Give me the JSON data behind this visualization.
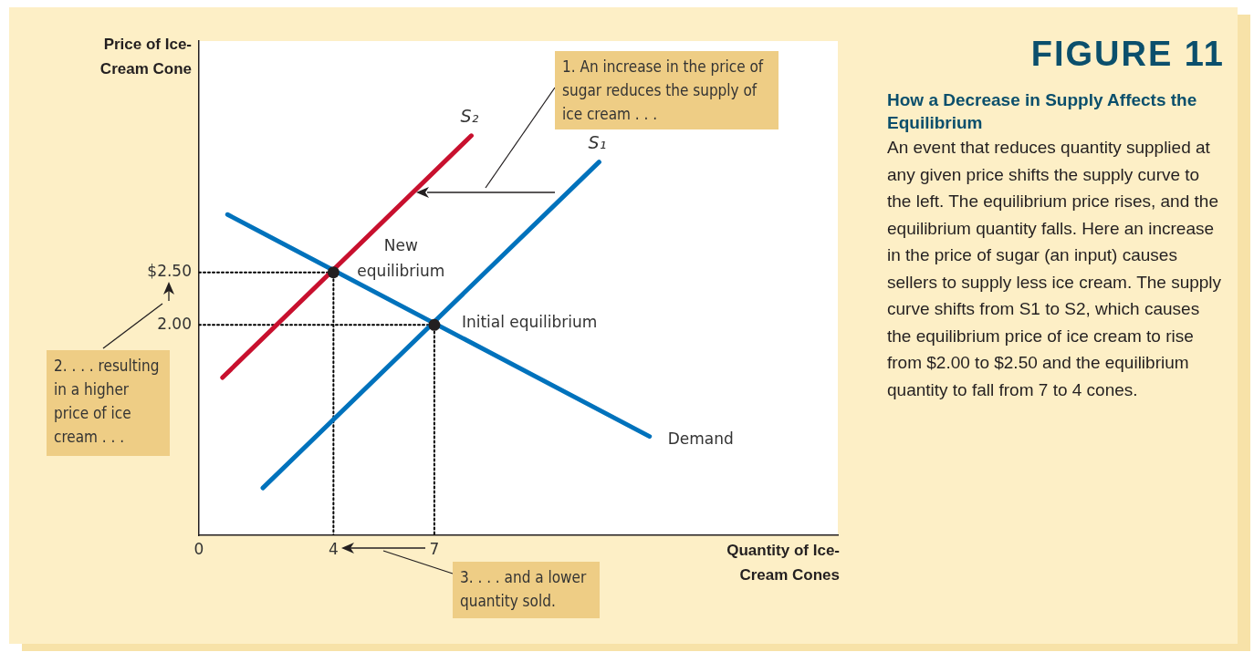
{
  "chart_data": {
    "type": "line",
    "title": "FIGURE 11",
    "subtitle": "How a Decrease in Supply Affects the Equilibrium",
    "xlabel": "Quantity of Ice-Cream Cones",
    "ylabel": "Price of Ice-Cream Cone",
    "xlim": [
      0,
      19
    ],
    "ylim": [
      0,
      4.7
    ],
    "xticks": [
      {
        "value": 0,
        "label": "0"
      },
      {
        "value": 4,
        "label": "4"
      },
      {
        "value": 7,
        "label": "7"
      }
    ],
    "yticks": [
      {
        "value": 2,
        "label": "2.00"
      },
      {
        "value": 2.5,
        "label": "$2.50"
      }
    ],
    "grid": false,
    "legend": false,
    "series": [
      {
        "name": "Demand",
        "color": "#0072bc",
        "marker": "none",
        "x": [
          0.85,
          13.4
        ],
        "values": [
          3.05,
          0.94
        ]
      },
      {
        "name": "S₁",
        "color": "#0072bc",
        "marker": "none",
        "x": [
          1.9,
          11.9
        ],
        "values": [
          0.45,
          3.55
        ]
      },
      {
        "name": "S₂",
        "color": "#c8102e",
        "marker": "none",
        "x": [
          0.7,
          8.1
        ],
        "values": [
          1.5,
          3.8
        ]
      },
      {
        "color": "#000000",
        "marker": "none",
        "line_style": "dotted",
        "x": [
          0,
          4,
          4
        ],
        "values": [
          2.5,
          2.5,
          0
        ]
      },
      {
        "color": "#000000",
        "marker": "none",
        "line_style": "dotted",
        "x": [
          0,
          7,
          7
        ],
        "values": [
          2,
          2,
          0
        ]
      },
      {
        "type": "scatter",
        "color": "#231f20",
        "marker": "circle",
        "x": [
          4,
          7
        ],
        "values": [
          2.5,
          2
        ]
      }
    ],
    "annotations": [
      "1. An increase in the price of sugar reduces the supply of ice cream . . .",
      "2. . . . resulting in a higher price of ice cream . . .",
      "3. . . . and a lower quantity sold.",
      "An event that reduces quantity supplied at any given price shifts the supply curve to the left. The equilibrium price rises, and the equilibrium quantity falls. Here an increase in the price of sugar (an input) causes sellers to supply less ice cream. The supply curve shifts from S1 to S2, which causes the equilibrium price of ice cream to rise from $2.00 to $2.50 and the equilibrium quantity to fall from 7 to 4 cones.",
      {
        "text": "New equilibrium",
        "x": 4,
        "y": 2.5
      },
      {
        "text": "Initial equilibrium",
        "x": 7,
        "y": 2
      }
    ]
  }
}
